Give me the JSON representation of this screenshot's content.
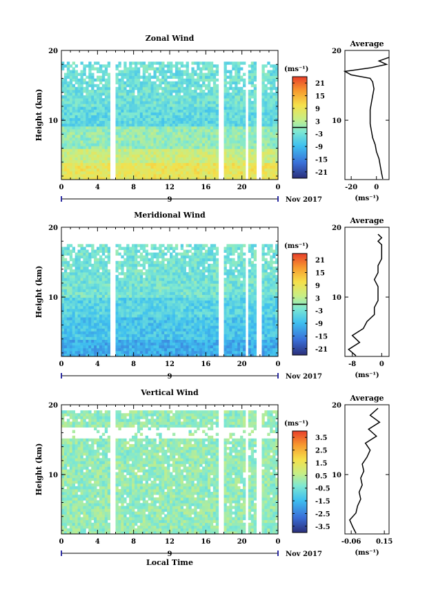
{
  "figure": {
    "xlabel": "Local Time",
    "date_label": "Nov 2017",
    "unit_label": "(ms⁻¹)"
  },
  "chart_data": [
    {
      "type": "heatmap",
      "title": "Zonal Wind",
      "ylabel": "Height (km)",
      "xlabel": "",
      "x_ticks": [
        "0",
        "4",
        "8",
        "12",
        "16",
        "20",
        "0"
      ],
      "day_label": "9",
      "y_ticks": [
        "10",
        "20"
      ],
      "xlim": [
        0,
        24
      ],
      "ylim": [
        1.5,
        20
      ],
      "colorbar": {
        "unit": "(ms⁻¹)",
        "ticks": [
          "21",
          "15",
          "9",
          "3",
          "-3",
          "-9",
          "-15",
          "-21"
        ],
        "range": [
          -24,
          24
        ],
        "contour": 0
      },
      "gaps_hours": [
        5.7,
        17.7,
        20.6,
        21.9
      ],
      "profile": {
        "title": "Average",
        "xlabel": "(ms⁻¹)",
        "x_ticks": [
          "-20",
          "0"
        ],
        "y_ticks": [
          "10",
          "20"
        ],
        "xlim": [
          -25,
          10
        ],
        "height_km": [
          1.6,
          2.5,
          3.5,
          4.5,
          5.5,
          6.5,
          7.5,
          8.5,
          9.5,
          10.5,
          11.5,
          12.5,
          13.5,
          14.5,
          15.5,
          16.0,
          16.5,
          17.0,
          17.5,
          18.0,
          18.5,
          19.0
        ],
        "value": [
          5,
          4,
          3,
          2,
          0,
          -1,
          -3,
          -4,
          -5,
          -5,
          -5,
          -4,
          -3,
          -2,
          -3,
          -5,
          -20,
          -25,
          -5,
          8,
          2,
          10
        ]
      }
    },
    {
      "type": "heatmap",
      "title": "Meridional Wind",
      "ylabel": "Height (km)",
      "xlabel": "",
      "x_ticks": [
        "0",
        "4",
        "8",
        "12",
        "16",
        "20",
        "0"
      ],
      "day_label": "9",
      "y_ticks": [
        "10",
        "20"
      ],
      "xlim": [
        0,
        24
      ],
      "ylim": [
        1.5,
        20
      ],
      "colorbar": {
        "unit": "(ms⁻¹)",
        "ticks": [
          "21",
          "15",
          "9",
          "3",
          "-3",
          "-9",
          "-15",
          "-21"
        ],
        "range": [
          -24,
          24
        ],
        "contour": 0
      },
      "gaps_hours": [
        5.7,
        17.7,
        20.6,
        21.9
      ],
      "profile": {
        "title": "Average",
        "xlabel": "(ms⁻¹)",
        "x_ticks": [
          "-8",
          "0"
        ],
        "y_ticks": [
          "10",
          "20"
        ],
        "xlim": [
          -10,
          2
        ],
        "height_km": [
          1.6,
          2.5,
          3.5,
          4.5,
          5.5,
          6.5,
          7.5,
          8.5,
          9.5,
          10.5,
          11.5,
          12.5,
          13.5,
          14.5,
          15.5,
          16.5,
          17.5,
          18.0,
          18.5,
          19.0
        ],
        "value": [
          -7,
          -9,
          -6,
          -8,
          -5,
          -4,
          -2,
          -2,
          -1,
          -1,
          -1,
          -2,
          -1,
          -1,
          0,
          0,
          0,
          -1,
          0,
          -1
        ]
      }
    },
    {
      "type": "heatmap",
      "title": "Vertical Wind",
      "ylabel": "Height (km)",
      "xlabel": "Local Time",
      "x_ticks": [
        "0",
        "4",
        "8",
        "12",
        "16",
        "20",
        "0"
      ],
      "day_label": "9",
      "y_ticks": [
        "10",
        "20"
      ],
      "xlim": [
        0,
        24
      ],
      "ylim": [
        1.5,
        20
      ],
      "colorbar": {
        "unit": "(ms⁻¹)",
        "ticks": [
          "3.5",
          "2.5",
          "1.5",
          "0.5",
          "-0.5",
          "-1.5",
          "-2.5",
          "-3.5"
        ],
        "range": [
          -4,
          4
        ],
        "contour": null
      },
      "gaps_hours": [
        5.7,
        17.7,
        20.6,
        21.9
      ],
      "profile": {
        "title": "Average",
        "xlabel": "(ms⁻¹)",
        "x_ticks": [
          "-0.06",
          "0.15"
        ],
        "y_ticks": [
          "10",
          "20"
        ],
        "xlim": [
          -0.1,
          0.18
        ],
        "height_km": [
          1.6,
          2.5,
          3.5,
          4.5,
          5.5,
          6.5,
          7.5,
          8.5,
          9.5,
          10.5,
          11.5,
          12.5,
          13.5,
          14.5,
          15.5,
          16.5,
          17.5,
          18.5,
          19.5
        ],
        "value": [
          -0.03,
          -0.05,
          -0.07,
          -0.03,
          -0.02,
          0.0,
          -0.01,
          0.01,
          0.0,
          0.02,
          0.01,
          0.04,
          0.06,
          0.03,
          0.1,
          0.05,
          0.12,
          0.06,
          0.11
        ]
      }
    }
  ]
}
